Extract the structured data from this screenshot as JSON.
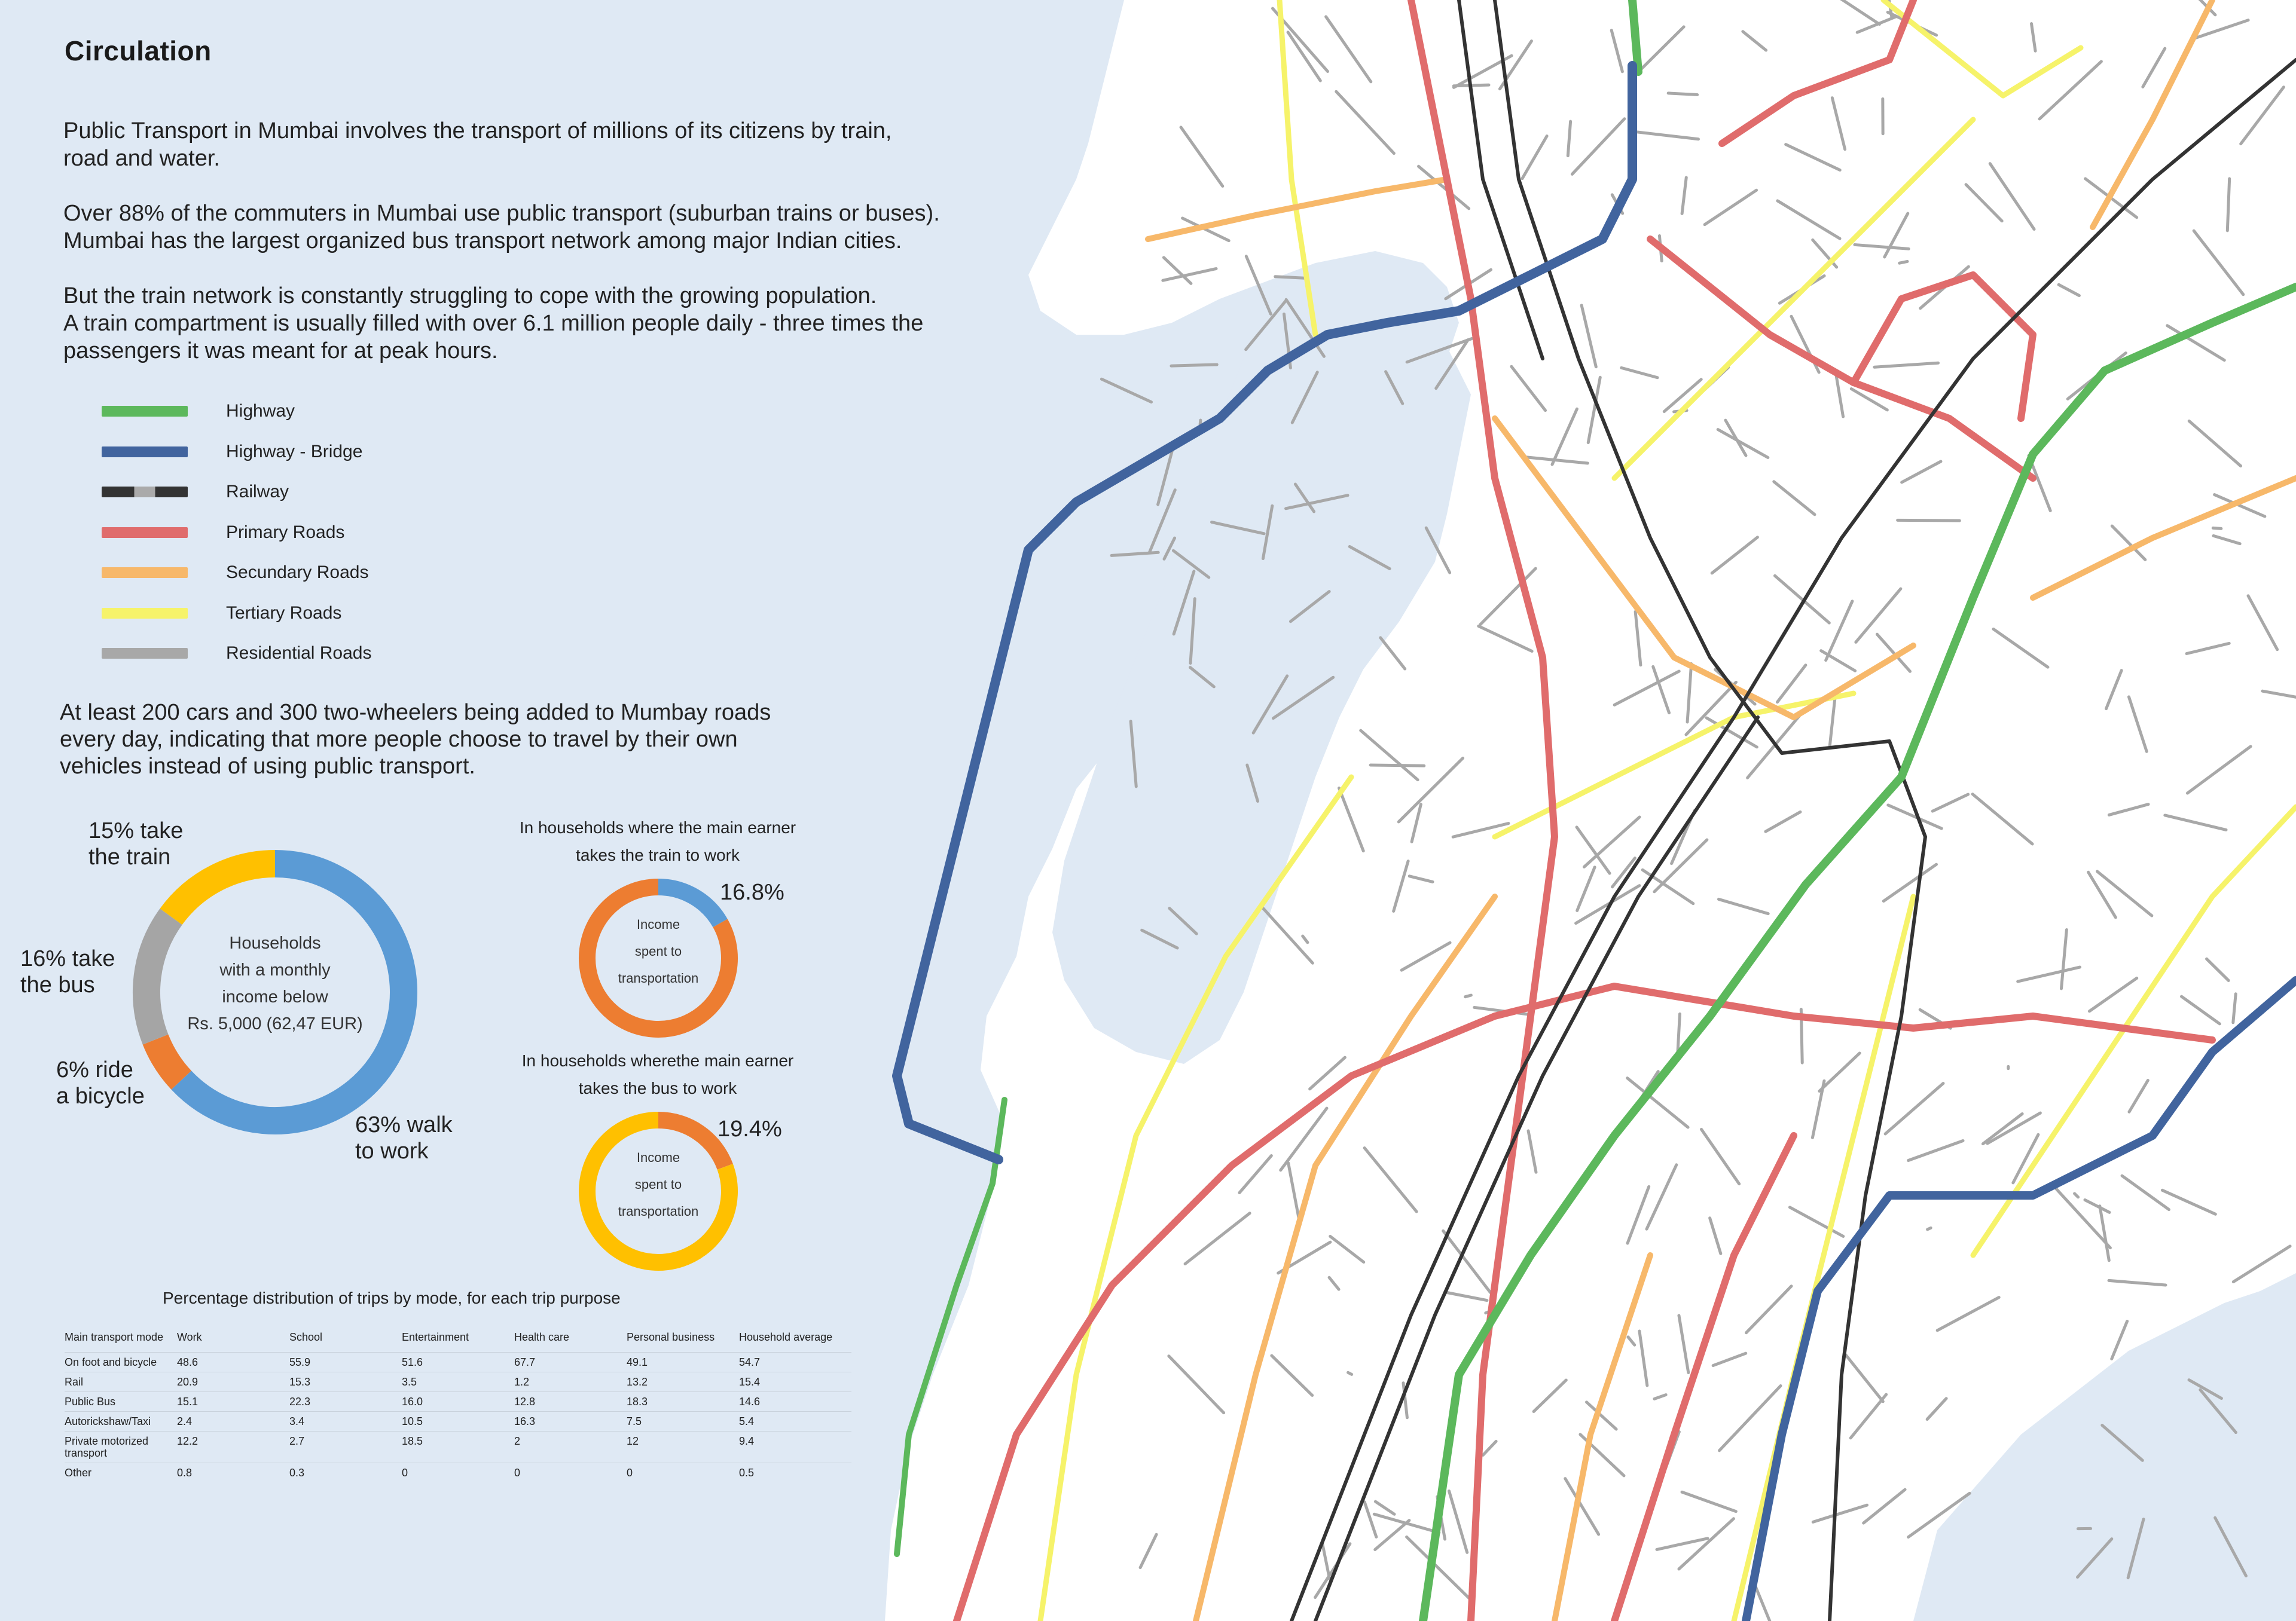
{
  "title": "Circulation",
  "intro": [
    "Public Transport in Mumbai involves the transport of millions of its citizens by train,\nroad and water.",
    "Over 88% of the commuters in Mumbai use public transport (suburban trains or buses).\nMumbai has the largest organized bus transport network among major Indian cities.",
    "But the train network is constantly struggling to cope with the growing population.\nA train compartment is usually filled with over 6.1 million people daily - three times the\npassengers it was meant for at peak hours."
  ],
  "legend": [
    {
      "label": "Highway",
      "color": "#5cb85c"
    },
    {
      "label": "Highway - Bridge",
      "color": "#41649e"
    },
    {
      "label": "Railway",
      "color": "#333333"
    },
    {
      "label": "Primary Roads",
      "color": "#e06c6c"
    },
    {
      "label": "Secundary Roads",
      "color": "#f7b86a"
    },
    {
      "label": "Tertiary Roads",
      "color": "#f6f36a"
    },
    {
      "label": "Residential Roads",
      "color": "#a8a8a8"
    }
  ],
  "cars_note": "At least 200 cars and 300 two-wheelers being added to Mumbay roads\nevery day, indicating that more people choose to travel by their own\nvehicles instead of using public transport.",
  "chart_data": [
    {
      "type": "pie",
      "title": "",
      "center_text": "Households\nwith a monthly\nincome below\nRs. 5,000 (62,47 EUR)",
      "slices": [
        {
          "label": "63% walk\nto work",
          "value": 63,
          "color": "#5b9bd5"
        },
        {
          "label": "6% ride\na bicycle",
          "value": 6,
          "color": "#ed7d31"
        },
        {
          "label": "16% take\nthe bus",
          "value": 16,
          "color": "#a5a5a5"
        },
        {
          "label": "15% take\nthe train",
          "value": 15,
          "color": "#ffc000"
        }
      ]
    },
    {
      "type": "pie",
      "title": "In households where the main earner\ntakes the train to work",
      "center_text": "Income\nspent to\ntransportation",
      "value_label": "16.8%",
      "slices": [
        {
          "label": "Income spent to transportation",
          "value": 16.8,
          "color": "#5b9bd5"
        },
        {
          "label": "",
          "value": 83.2,
          "color": "#ed7d31"
        }
      ]
    },
    {
      "type": "pie",
      "title": "In households wherethe main earner\ntakes the bus to work",
      "center_text": "Income\nspent to\ntransportation",
      "value_label": "19.4%",
      "slices": [
        {
          "label": "Income spent to transportation",
          "value": 19.4,
          "color": "#ed7d31"
        },
        {
          "label": "",
          "value": 80.6,
          "color": "#ffc000"
        }
      ]
    },
    {
      "type": "table",
      "title": "Percentage distribution of trips by mode, for each trip purpose",
      "columns": [
        "Main transport mode",
        "Work",
        "School",
        "Entertainment",
        "Health care",
        "Personal business",
        "Household average"
      ],
      "rows": [
        [
          "On foot and bicycle",
          "48.6",
          "55.9",
          "51.6",
          "67.7",
          "49.1",
          "54.7"
        ],
        [
          "Rail",
          "20.9",
          "15.3",
          "3.5",
          "1.2",
          "13.2",
          "15.4"
        ],
        [
          "Public Bus",
          "15.1",
          "22.3",
          "16.0",
          "12.8",
          "18.3",
          "14.6"
        ],
        [
          "Autorickshaw/Taxi",
          "2.4",
          "3.4",
          "10.5",
          "16.3",
          "7.5",
          "5.4"
        ],
        [
          "Private motorized transport",
          "12.2",
          "2.7",
          "18.5",
          "2",
          "12",
          "9.4"
        ],
        [
          "Other",
          "0.8",
          "0.3",
          "0",
          "0",
          "0",
          "0.5"
        ]
      ]
    }
  ],
  "map_colors": {
    "land": "#ffffff",
    "water": "#dfe9f4"
  }
}
